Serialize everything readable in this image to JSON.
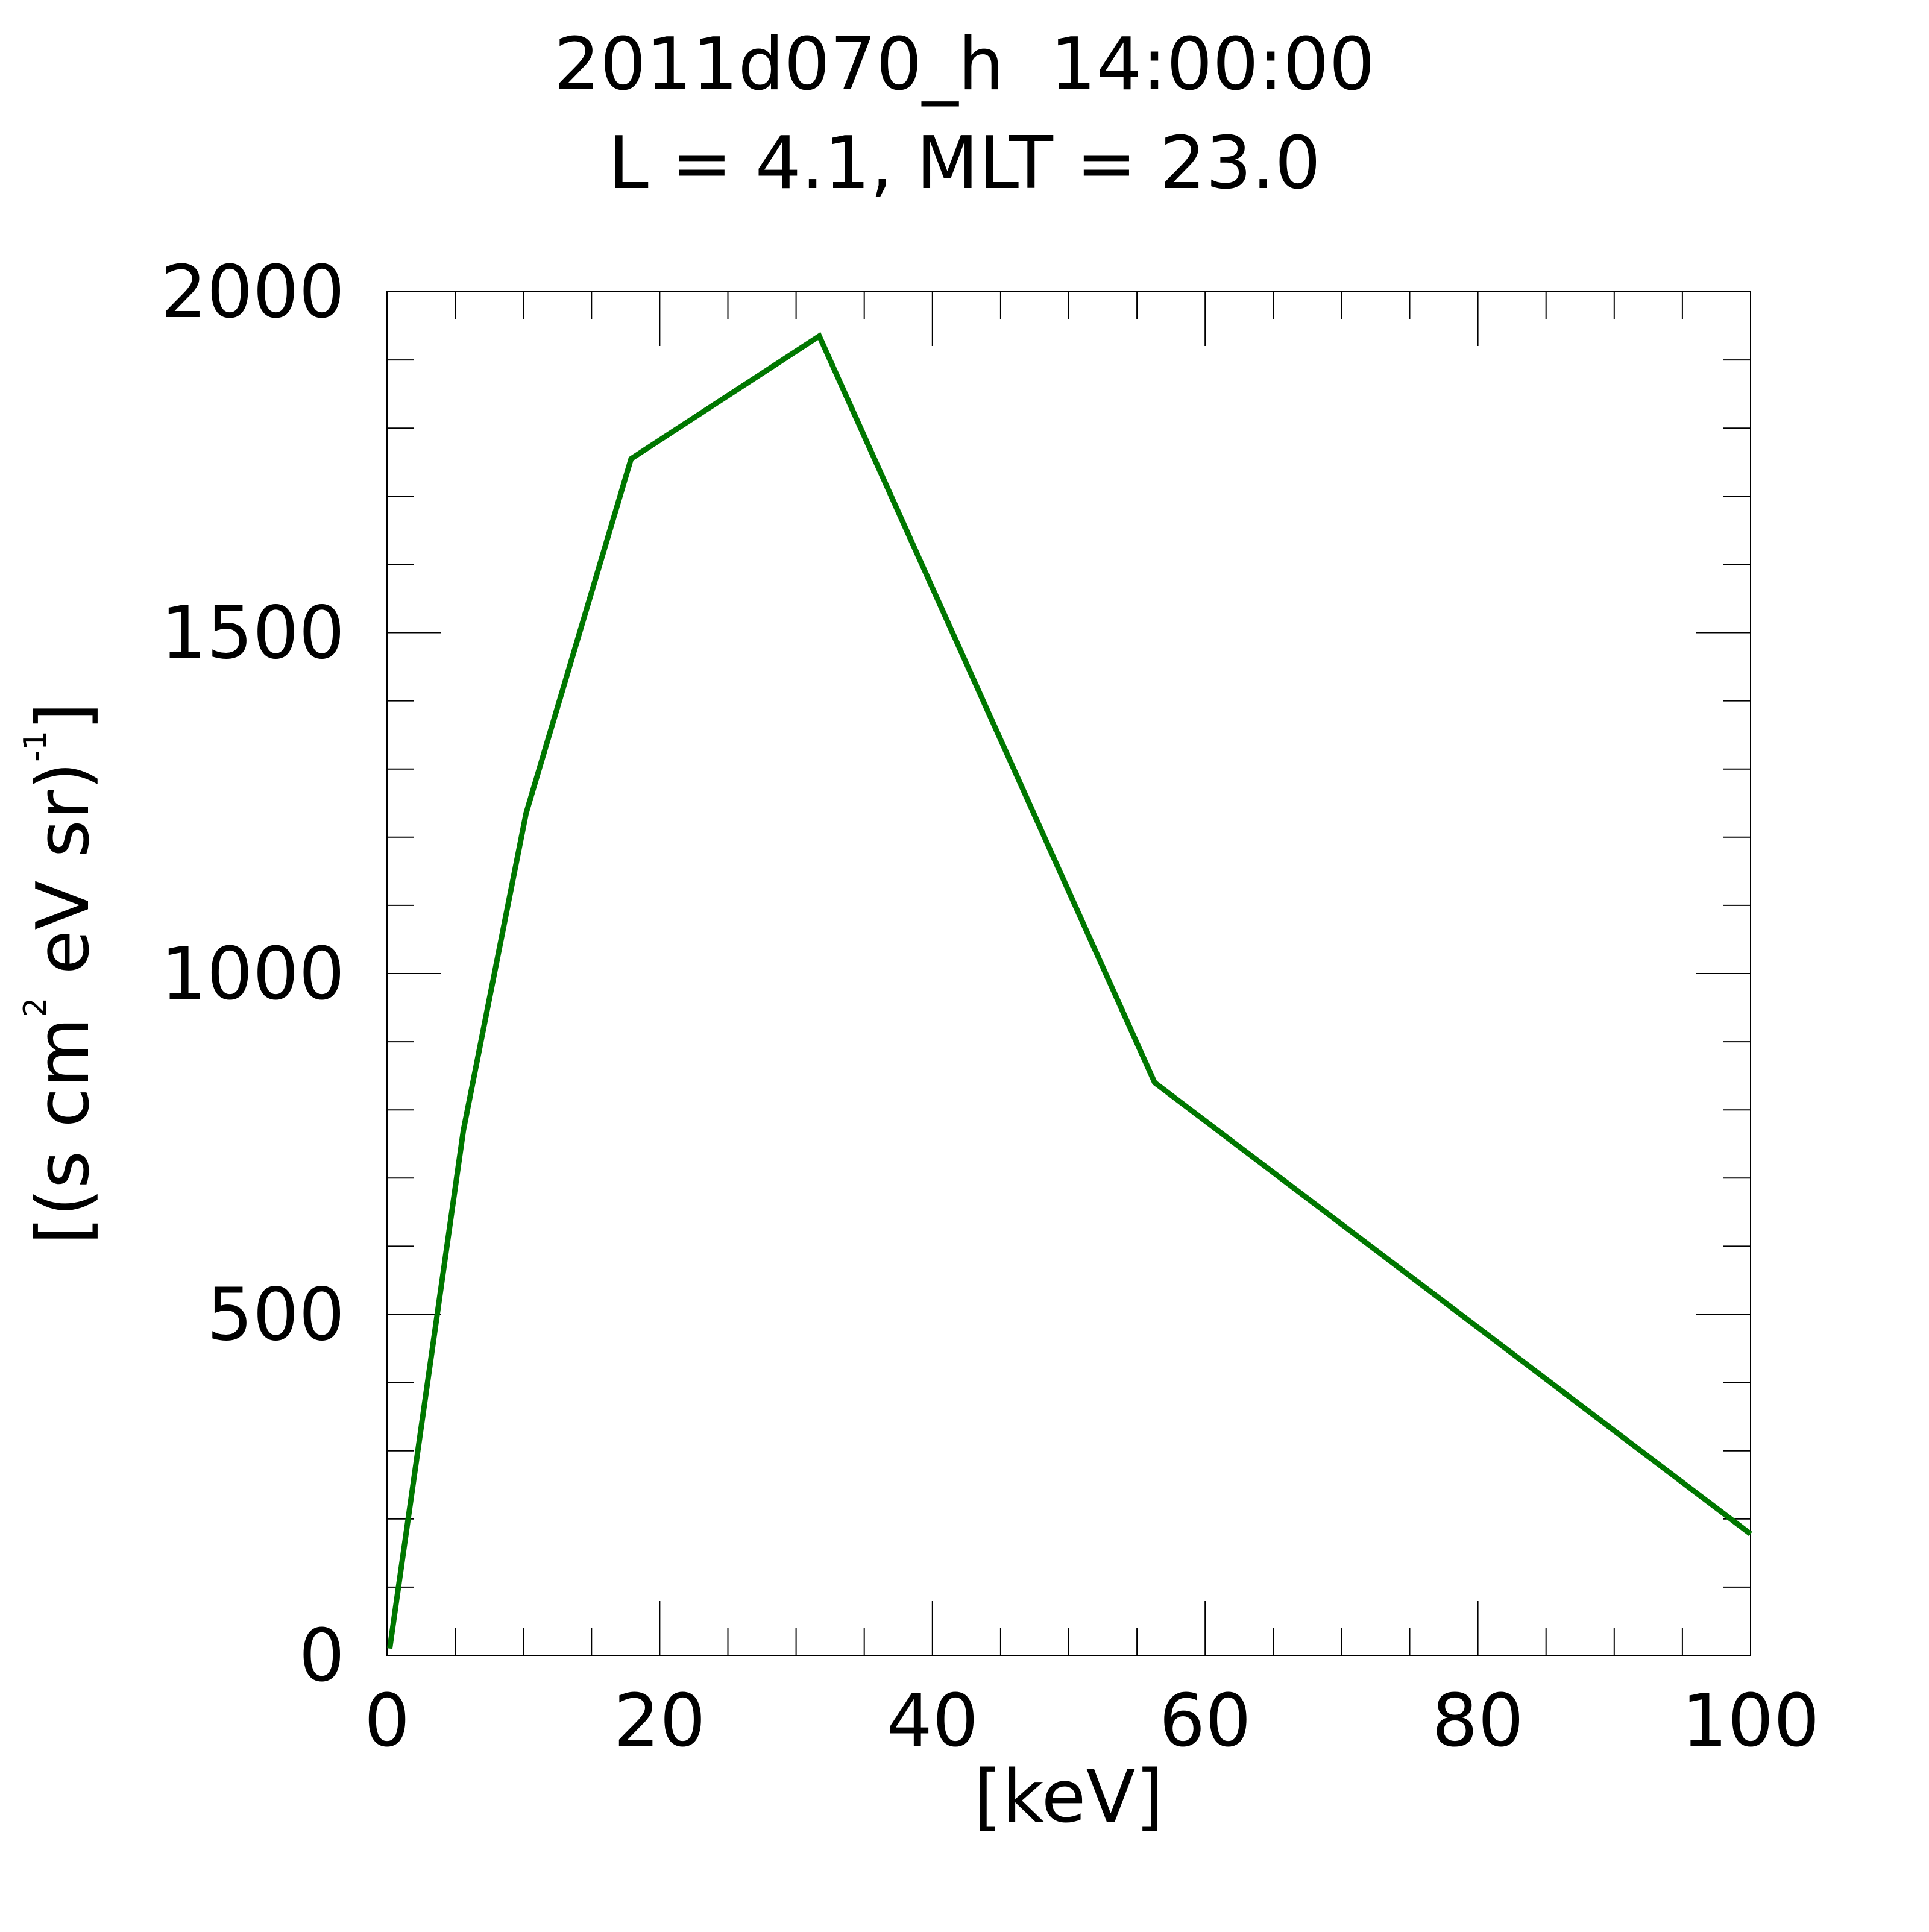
{
  "chart_data": {
    "type": "line",
    "title": "2011d070_h  14:00:00",
    "subtitle": "L = 4.1, MLT = 23.0",
    "xlabel": "[keV]",
    "ylabel": {
      "prefix": "[(s cm",
      "sup1": "2",
      "middle": " eV sr)",
      "sup2": "-1",
      "suffix": "]"
    },
    "xlim": [
      0,
      100
    ],
    "ylim": [
      0,
      2000
    ],
    "x_ticks": [
      0,
      20,
      40,
      60,
      80,
      100
    ],
    "x_tick_labels": [
      "0",
      "20",
      "40",
      "60",
      "80",
      "100"
    ],
    "x_minor_step": 5,
    "y_ticks": [
      0,
      500,
      1000,
      1500,
      2000
    ],
    "y_tick_labels": [
      "0",
      "500",
      "1000",
      "1500",
      "2000"
    ],
    "y_minor_step": 100,
    "grid": false,
    "series": [
      {
        "color": "#007700",
        "x": [
          0.2,
          5.6,
          10.2,
          17.9,
          31.7,
          56.3,
          100
        ],
        "y": [
          10,
          770,
          1235,
          1755,
          1935,
          840,
          178
        ]
      }
    ]
  }
}
